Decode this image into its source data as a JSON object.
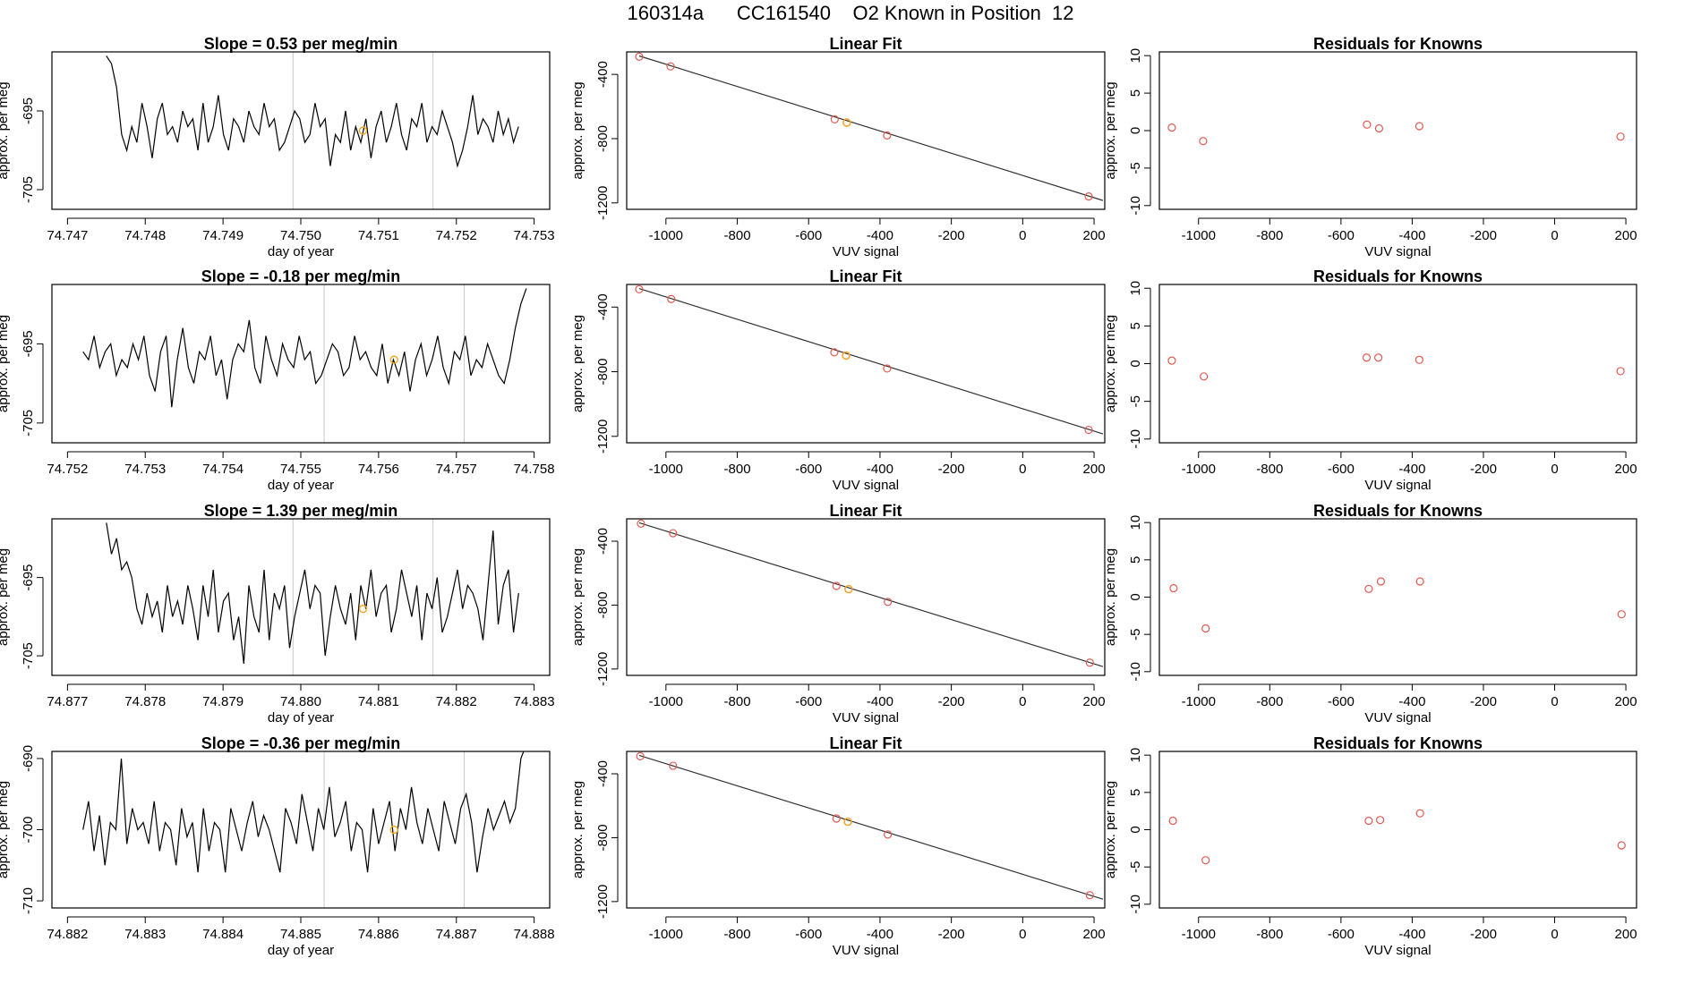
{
  "figure": {
    "title": "160314a      CC161540    O2 Known in Position  12",
    "colors": {
      "line": "#000000",
      "point": "#e05a4f",
      "highlight": "#f5a623",
      "grid": "#c8c8c8",
      "fit": "#333333"
    }
  },
  "chart_data": [
    {
      "type": "line",
      "panel": "timeseries-1",
      "title": "Slope =  0.53  per meg/min",
      "xlabel": "day of year",
      "ylabel": "approx. per meg",
      "xlim": [
        74.7468,
        74.7532
      ],
      "ylim": [
        -707.5,
        -687.5
      ],
      "xticks": [
        74.747,
        74.748,
        74.749,
        74.75,
        74.751,
        74.752,
        74.753
      ],
      "xtick_labels": [
        "74.747",
        "74.748",
        "74.749",
        "74.750",
        "74.751",
        "74.752",
        "74.753"
      ],
      "yticks": [
        -705,
        -695
      ],
      "ytick_labels": [
        "-705",
        "-695"
      ],
      "vlines": [
        74.7499,
        74.7517
      ],
      "highlight_point": {
        "x": 74.7508,
        "y": -697.5
      },
      "series": {
        "x_start": 74.7475,
        "x_end": 74.7528,
        "values": [
          -688,
          -689,
          -692,
          -698,
          -700,
          -697,
          -699,
          -694,
          -697,
          -701,
          -696,
          -694,
          -698,
          -697,
          -699,
          -695,
          -697,
          -696,
          -700,
          -694,
          -699,
          -697,
          -693,
          -698,
          -700,
          -696,
          -697,
          -699,
          -695,
          -697,
          -698,
          -694,
          -697,
          -696,
          -700,
          -699,
          -697,
          -695,
          -696,
          -699,
          -698,
          -694,
          -697,
          -696,
          -702,
          -698,
          -699,
          -695,
          -700,
          -697,
          -699,
          -696,
          -701,
          -697,
          -695,
          -699,
          -697,
          -694,
          -698,
          -700,
          -696,
          -697,
          -694,
          -699,
          -697,
          -698,
          -695,
          -697,
          -699,
          -702,
          -700,
          -697,
          -693,
          -698,
          -696,
          -697,
          -699,
          -695,
          -698,
          -696,
          -699,
          -697
        ]
      }
    },
    {
      "type": "scatter",
      "panel": "linear-fit-1",
      "title": "Linear Fit",
      "xlabel": "VUV signal",
      "ylabel": "approx. per meg",
      "xlim": [
        -1110,
        230
      ],
      "ylim": [
        -1240,
        -260
      ],
      "xticks": [
        -1000,
        -800,
        -600,
        -400,
        -200,
        0,
        200
      ],
      "xtick_labels": [
        "-1000",
        "-800",
        "-600",
        "-400",
        "-200",
        "0",
        "200"
      ],
      "yticks": [
        -1200,
        -800,
        -400
      ],
      "ytick_labels": [
        "-1200",
        "-800",
        "-400"
      ],
      "points": [
        {
          "x": -1075,
          "y": -290
        },
        {
          "x": -987,
          "y": -350
        },
        {
          "x": -527,
          "y": -680
        },
        {
          "x": -493,
          "y": -700
        },
        {
          "x": -380,
          "y": -780
        },
        {
          "x": 185,
          "y": -1160
        }
      ],
      "highlight_point": {
        "x": -493,
        "y": -700
      },
      "fit_line": {
        "x": [
          -1075,
          225
        ],
        "y": [
          -285,
          -1185
        ]
      }
    },
    {
      "type": "scatter",
      "panel": "residuals-1",
      "title": "Residuals for Knowns",
      "xlabel": "VUV signal",
      "ylabel": "approx. per meg",
      "xlim": [
        -1110,
        230
      ],
      "ylim": [
        -10.5,
        10.5
      ],
      "xticks": [
        -1000,
        -800,
        -600,
        -400,
        -200,
        0,
        200
      ],
      "xtick_labels": [
        "-1000",
        "-800",
        "-600",
        "-400",
        "-200",
        "0",
        "200"
      ],
      "yticks": [
        -10,
        -5,
        0,
        5,
        10
      ],
      "ytick_labels": [
        "-10",
        "-5",
        "0",
        "5",
        "10"
      ],
      "points": [
        {
          "x": -1075,
          "y": 0.4
        },
        {
          "x": -987,
          "y": -1.4
        },
        {
          "x": -527,
          "y": 0.8
        },
        {
          "x": -493,
          "y": 0.3
        },
        {
          "x": -380,
          "y": 0.6
        },
        {
          "x": 185,
          "y": -0.8
        }
      ]
    },
    {
      "type": "line",
      "panel": "timeseries-2",
      "title": "Slope =  -0.18  per meg/min",
      "xlabel": "day of year",
      "ylabel": "approx. per meg",
      "xlim": [
        74.7518,
        74.7582
      ],
      "ylim": [
        -707.5,
        -687.5
      ],
      "xticks": [
        74.752,
        74.753,
        74.754,
        74.755,
        74.756,
        74.757,
        74.758
      ],
      "xtick_labels": [
        "74.752",
        "74.753",
        "74.754",
        "74.755",
        "74.756",
        "74.757",
        "74.758"
      ],
      "yticks": [
        -705,
        -695
      ],
      "ytick_labels": [
        "-705",
        "-695"
      ],
      "vlines": [
        74.7553,
        74.7571
      ],
      "highlight_point": {
        "x": 74.7562,
        "y": -697
      },
      "series": {
        "x_start": 74.7522,
        "x_end": 74.7579,
        "values": [
          -696,
          -697,
          -694,
          -698,
          -696,
          -695,
          -699,
          -697,
          -698,
          -695,
          -697,
          -694,
          -699,
          -701,
          -696,
          -694,
          -703,
          -697,
          -693,
          -698,
          -700,
          -696,
          -697,
          -694,
          -699,
          -697,
          -702,
          -697,
          -695,
          -696,
          -692,
          -698,
          -700,
          -694,
          -697,
          -699,
          -695,
          -697,
          -698,
          -694,
          -697,
          -696,
          -700,
          -699,
          -697,
          -695,
          -696,
          -699,
          -698,
          -694,
          -697,
          -696,
          -698,
          -699,
          -695,
          -700,
          -697,
          -699,
          -696,
          -701,
          -697,
          -695,
          -699,
          -697,
          -694,
          -698,
          -700,
          -696,
          -697,
          -694,
          -699,
          -697,
          -698,
          -695,
          -697,
          -699,
          -700,
          -697,
          -693,
          -690,
          -688
        ]
      }
    },
    {
      "type": "scatter",
      "panel": "linear-fit-2",
      "title": "Linear Fit",
      "xlabel": "VUV signal",
      "ylabel": "approx. per meg",
      "xlim": [
        -1110,
        230
      ],
      "ylim": [
        -1240,
        -260
      ],
      "xticks": [
        -1000,
        -800,
        -600,
        -400,
        -200,
        0,
        200
      ],
      "xtick_labels": [
        "-1000",
        "-800",
        "-600",
        "-400",
        "-200",
        "0",
        "200"
      ],
      "yticks": [
        -1200,
        -800,
        -400
      ],
      "ytick_labels": [
        "-1200",
        "-800",
        "-400"
      ],
      "points": [
        {
          "x": -1075,
          "y": -290
        },
        {
          "x": -985,
          "y": -350
        },
        {
          "x": -528,
          "y": -680
        },
        {
          "x": -495,
          "y": -700
        },
        {
          "x": -380,
          "y": -780
        },
        {
          "x": 185,
          "y": -1160
        }
      ],
      "highlight_point": {
        "x": -495,
        "y": -700
      },
      "fit_line": {
        "x": [
          -1075,
          225
        ],
        "y": [
          -285,
          -1185
        ]
      }
    },
    {
      "type": "scatter",
      "panel": "residuals-2",
      "title": "Residuals for Knowns",
      "xlabel": "VUV signal",
      "ylabel": "approx. per meg",
      "xlim": [
        -1110,
        230
      ],
      "ylim": [
        -10.5,
        10.5
      ],
      "xticks": [
        -1000,
        -800,
        -600,
        -400,
        -200,
        0,
        200
      ],
      "xtick_labels": [
        "-1000",
        "-800",
        "-600",
        "-400",
        "-200",
        "0",
        "200"
      ],
      "yticks": [
        -10,
        -5,
        0,
        5,
        10
      ],
      "ytick_labels": [
        "-10",
        "-5",
        "0",
        "5",
        "10"
      ],
      "points": [
        {
          "x": -1075,
          "y": 0.4
        },
        {
          "x": -985,
          "y": -1.7
        },
        {
          "x": -528,
          "y": 0.8
        },
        {
          "x": -495,
          "y": 0.8
        },
        {
          "x": -380,
          "y": 0.5
        },
        {
          "x": 185,
          "y": -1.0
        }
      ]
    },
    {
      "type": "line",
      "panel": "timeseries-3",
      "title": "Slope =  1.39  per meg/min",
      "xlabel": "day of year",
      "ylabel": "approx. per meg",
      "xlim": [
        74.8768,
        74.8832
      ],
      "ylim": [
        -707.5,
        -687.5
      ],
      "xticks": [
        74.877,
        74.878,
        74.879,
        74.88,
        74.881,
        74.882,
        74.883
      ],
      "xtick_labels": [
        "74.877",
        "74.878",
        "74.879",
        "74.880",
        "74.881",
        "74.882",
        "74.883"
      ],
      "yticks": [
        -705,
        -695
      ],
      "ytick_labels": [
        "-705",
        "-695"
      ],
      "vlines": [
        74.8799,
        74.8817
      ],
      "highlight_point": {
        "x": 74.8808,
        "y": -699
      },
      "series": {
        "x_start": 74.8775,
        "x_end": 74.8828,
        "values": [
          -688,
          -692,
          -690,
          -694,
          -693,
          -695,
          -699,
          -701,
          -697,
          -700,
          -698,
          -702,
          -696,
          -700,
          -698,
          -701,
          -696,
          -699,
          -703,
          -696,
          -700,
          -694,
          -702,
          -698,
          -697,
          -703,
          -700,
          -706,
          -696,
          -700,
          -702,
          -694,
          -703,
          -697,
          -699,
          -696,
          -704,
          -700,
          -697,
          -694,
          -699,
          -696,
          -697,
          -705,
          -700,
          -696,
          -699,
          -701,
          -697,
          -703,
          -696,
          -699,
          -694,
          -700,
          -697,
          -696,
          -702,
          -699,
          -694,
          -697,
          -700,
          -696,
          -703,
          -697,
          -699,
          -695,
          -702,
          -700,
          -697,
          -694,
          -699,
          -696,
          -697,
          -699,
          -703,
          -696,
          -689,
          -701,
          -696,
          -694,
          -702,
          -697
        ]
      }
    },
    {
      "type": "scatter",
      "panel": "linear-fit-3",
      "title": "Linear Fit",
      "xlabel": "VUV signal",
      "ylabel": "approx. per meg",
      "xlim": [
        -1110,
        230
      ],
      "ylim": [
        -1240,
        -260
      ],
      "xticks": [
        -1000,
        -800,
        -600,
        -400,
        -200,
        0,
        200
      ],
      "xtick_labels": [
        "-1000",
        "-800",
        "-600",
        "-400",
        "-200",
        "0",
        "200"
      ],
      "yticks": [
        -1200,
        -800,
        -400
      ],
      "ytick_labels": [
        "-1200",
        "-800",
        "-400"
      ],
      "points": [
        {
          "x": -1070,
          "y": -290
        },
        {
          "x": -980,
          "y": -350
        },
        {
          "x": -522,
          "y": -680
        },
        {
          "x": -488,
          "y": -700
        },
        {
          "x": -378,
          "y": -780
        },
        {
          "x": 188,
          "y": -1160
        }
      ],
      "highlight_point": {
        "x": -488,
        "y": -700
      },
      "fit_line": {
        "x": [
          -1075,
          225
        ],
        "y": [
          -285,
          -1185
        ]
      }
    },
    {
      "type": "scatter",
      "panel": "residuals-3",
      "title": "Residuals for Knowns",
      "xlabel": "VUV signal",
      "ylabel": "approx. per meg",
      "xlim": [
        -1110,
        230
      ],
      "ylim": [
        -10.5,
        10.5
      ],
      "xticks": [
        -1000,
        -800,
        -600,
        -400,
        -200,
        0,
        200
      ],
      "xtick_labels": [
        "-1000",
        "-800",
        "-600",
        "-400",
        "-200",
        "0",
        "200"
      ],
      "yticks": [
        -10,
        -5,
        0,
        5,
        10
      ],
      "ytick_labels": [
        "-10",
        "-5",
        "0",
        "5",
        "10"
      ],
      "points": [
        {
          "x": -1070,
          "y": 1.2
        },
        {
          "x": -980,
          "y": -4.2
        },
        {
          "x": -522,
          "y": 1.1
        },
        {
          "x": -488,
          "y": 2.1
        },
        {
          "x": -378,
          "y": 2.1
        },
        {
          "x": 188,
          "y": -2.3
        }
      ]
    },
    {
      "type": "line",
      "panel": "timeseries-4",
      "title": "Slope =  -0.36  per meg/min",
      "xlabel": "day of year",
      "ylabel": "approx. per meg",
      "xlim": [
        74.8818,
        74.8882
      ],
      "ylim": [
        -711,
        -689
      ],
      "xticks": [
        74.882,
        74.883,
        74.884,
        74.885,
        74.886,
        74.887,
        74.888
      ],
      "xtick_labels": [
        "74.882",
        "74.883",
        "74.884",
        "74.885",
        "74.886",
        "74.887",
        "74.888"
      ],
      "yticks": [
        -710,
        -700,
        -690
      ],
      "ytick_labels": [
        "-710",
        "-700",
        "-690"
      ],
      "vlines": [
        74.8853,
        74.8871
      ],
      "highlight_point": {
        "x": 74.8862,
        "y": -700
      },
      "series": {
        "x_start": 74.8822,
        "x_end": 74.8879,
        "values": [
          -700,
          -696,
          -703,
          -698,
          -705,
          -699,
          -700,
          -690,
          -702,
          -697,
          -700,
          -699,
          -702,
          -696,
          -703,
          -699,
          -700,
          -705,
          -697,
          -701,
          -699,
          -706,
          -697,
          -703,
          -699,
          -700,
          -706,
          -697,
          -700,
          -703,
          -699,
          -696,
          -701,
          -698,
          -700,
          -703,
          -706,
          -697,
          -699,
          -702,
          -695,
          -699,
          -703,
          -697,
          -700,
          -694,
          -701,
          -699,
          -696,
          -703,
          -699,
          -700,
          -706,
          -697,
          -702,
          -699,
          -696,
          -703,
          -697,
          -700,
          -694,
          -699,
          -702,
          -697,
          -700,
          -703,
          -696,
          -699,
          -702,
          -697,
          -695,
          -699,
          -706,
          -701,
          -697,
          -700,
          -698,
          -696,
          -699,
          -697,
          -690,
          -688
        ]
      }
    },
    {
      "type": "scatter",
      "panel": "linear-fit-4",
      "title": "Linear Fit",
      "xlabel": "VUV signal",
      "ylabel": "approx. per meg",
      "xlim": [
        -1110,
        230
      ],
      "ylim": [
        -1240,
        -260
      ],
      "xticks": [
        -1000,
        -800,
        -600,
        -400,
        -200,
        0,
        200
      ],
      "xtick_labels": [
        "-1000",
        "-800",
        "-600",
        "-400",
        "-200",
        "0",
        "200"
      ],
      "yticks": [
        -1200,
        -800,
        -400
      ],
      "ytick_labels": [
        "-1200",
        "-800",
        "-400"
      ],
      "points": [
        {
          "x": -1072,
          "y": -290
        },
        {
          "x": -980,
          "y": -350
        },
        {
          "x": -522,
          "y": -680
        },
        {
          "x": -490,
          "y": -700
        },
        {
          "x": -378,
          "y": -780
        },
        {
          "x": 188,
          "y": -1160
        }
      ],
      "highlight_point": {
        "x": -490,
        "y": -700
      },
      "fit_line": {
        "x": [
          -1075,
          225
        ],
        "y": [
          -285,
          -1185
        ]
      }
    },
    {
      "type": "scatter",
      "panel": "residuals-4",
      "title": "Residuals for Knowns",
      "xlabel": "VUV signal",
      "ylabel": "approx. per meg",
      "xlim": [
        -1110,
        230
      ],
      "ylim": [
        -10.5,
        10.5
      ],
      "xticks": [
        -1000,
        -800,
        -600,
        -400,
        -200,
        0,
        200
      ],
      "xtick_labels": [
        "-1000",
        "-800",
        "-600",
        "-400",
        "-200",
        "0",
        "200"
      ],
      "yticks": [
        -10,
        -5,
        0,
        5,
        10
      ],
      "ytick_labels": [
        "-10",
        "-5",
        "0",
        "5",
        "10"
      ],
      "points": [
        {
          "x": -1072,
          "y": 1.2
        },
        {
          "x": -980,
          "y": -4.1
        },
        {
          "x": -522,
          "y": 1.2
        },
        {
          "x": -490,
          "y": 1.3
        },
        {
          "x": -378,
          "y": 2.2
        },
        {
          "x": 188,
          "y": -2.1
        }
      ]
    }
  ]
}
